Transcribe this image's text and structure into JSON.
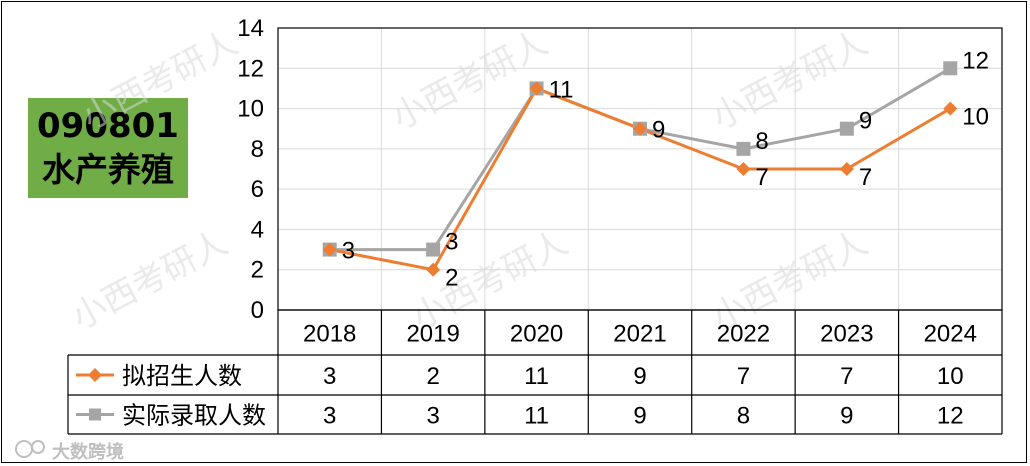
{
  "box": {
    "code": "090801",
    "name": "水产养殖"
  },
  "watermark": "小西考研人",
  "footer": "大数跨境",
  "chart_data": {
    "type": "line",
    "categories": [
      "2018",
      "2019",
      "2020",
      "2021",
      "2022",
      "2023",
      "2024"
    ],
    "ylim": [
      0,
      14
    ],
    "yticks": [
      0,
      2,
      4,
      6,
      8,
      10,
      12,
      14
    ],
    "grid": true,
    "legend": "table-left",
    "series": [
      {
        "name": "拟招生人数",
        "color": "#ed7d31",
        "marker": "diamond",
        "values": [
          3,
          2,
          11,
          9,
          7,
          7,
          10
        ]
      },
      {
        "name": "实际录取人数",
        "color": "#a5a5a5",
        "marker": "square",
        "values": [
          3,
          3,
          11,
          9,
          8,
          9,
          12
        ]
      }
    ]
  }
}
